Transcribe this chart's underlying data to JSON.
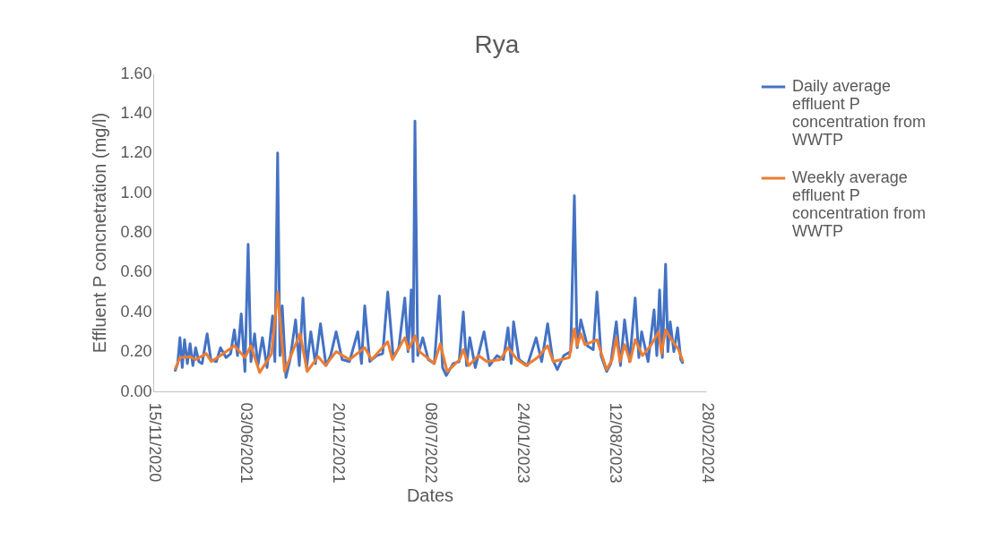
{
  "chart_data": {
    "type": "line",
    "title": "Rya",
    "xlabel": "Dates",
    "ylabel": "Effluent P concnetration (mg/l)",
    "xlim": [
      "2020-11-15",
      "2024-02-28"
    ],
    "xticks": [
      {
        "value": "2020-11-15",
        "label": "15/11/2020"
      },
      {
        "value": "2021-06-03",
        "label": "03/06/2021"
      },
      {
        "value": "2021-12-20",
        "label": "20/12/2021"
      },
      {
        "value": "2022-07-08",
        "label": "08/07/2022"
      },
      {
        "value": "2023-01-24",
        "label": "24/01/2023"
      },
      {
        "value": "2023-08-12",
        "label": "12/08/2023"
      },
      {
        "value": "2024-02-28",
        "label": "28/02/2024"
      }
    ],
    "ylim": [
      0,
      1.6
    ],
    "yticks": [
      {
        "value": 0,
        "label": "0.00"
      },
      {
        "value": 0.2,
        "label": "0.20"
      },
      {
        "value": 0.4,
        "label": "0.40"
      },
      {
        "value": 0.6,
        "label": "0.60"
      },
      {
        "value": 0.8,
        "label": "0.80"
      },
      {
        "value": 1,
        "label": "1.00"
      },
      {
        "value": 1.2,
        "label": "1.20"
      },
      {
        "value": 1.4,
        "label": "1.40"
      },
      {
        "value": 1.6,
        "label": "1.60"
      }
    ],
    "grid": false,
    "legend": "right",
    "line_style": "solid",
    "marker": "none",
    "series": [
      {
        "name": "Daily average effluent P concentration from WWTP",
        "color": "#4472c4",
        "x": [
          "2021-01-01",
          "2021-01-07",
          "2021-01-12",
          "2021-01-17",
          "2021-01-22",
          "2021-01-28",
          "2021-02-03",
          "2021-02-09",
          "2021-02-15",
          "2021-02-22",
          "2021-03-01",
          "2021-03-12",
          "2021-03-20",
          "2021-04-01",
          "2021-04-10",
          "2021-04-22",
          "2021-05-02",
          "2021-05-10",
          "2021-05-17",
          "2021-05-25",
          "2021-06-02",
          "2021-06-09",
          "2021-06-15",
          "2021-06-23",
          "2021-06-30",
          "2021-07-10",
          "2021-07-20",
          "2021-08-01",
          "2021-08-06",
          "2021-08-12",
          "2021-08-17",
          "2021-08-22",
          "2021-08-30",
          "2021-09-08",
          "2021-09-20",
          "2021-09-28",
          "2021-10-06",
          "2021-10-14",
          "2021-10-23",
          "2021-11-02",
          "2021-11-13",
          "2021-11-25",
          "2021-12-05",
          "2021-12-17",
          "2021-12-30",
          "2022-01-15",
          "2022-02-02",
          "2022-02-10",
          "2022-02-17",
          "2022-02-28",
          "2022-03-15",
          "2022-03-28",
          "2022-04-08",
          "2022-04-20",
          "2022-05-02",
          "2022-05-15",
          "2022-05-22",
          "2022-05-29",
          "2022-06-02",
          "2022-06-06",
          "2022-06-12",
          "2022-06-23",
          "2022-07-05",
          "2022-07-18",
          "2022-07-29",
          "2022-08-05",
          "2022-08-13",
          "2022-08-28",
          "2022-09-10",
          "2022-09-19",
          "2022-09-26",
          "2022-10-03",
          "2022-10-15",
          "2022-11-03",
          "2022-11-15",
          "2022-12-01",
          "2022-12-15",
          "2022-12-25",
          "2023-01-01",
          "2023-01-06",
          "2023-01-18",
          "2023-02-05",
          "2023-02-24",
          "2023-03-08",
          "2023-03-21",
          "2023-04-01",
          "2023-04-11",
          "2023-04-25",
          "2023-05-10",
          "2023-05-18",
          "2023-05-24",
          "2023-06-01",
          "2023-06-15",
          "2023-06-28",
          "2023-07-06",
          "2023-07-15",
          "2023-07-27",
          "2023-08-05",
          "2023-08-17",
          "2023-08-26",
          "2023-09-04",
          "2023-09-15",
          "2023-09-27",
          "2023-10-05",
          "2023-10-11",
          "2023-10-25",
          "2023-11-07",
          "2023-11-13",
          "2023-11-19",
          "2023-11-25",
          "2023-12-02",
          "2023-12-07",
          "2023-12-12",
          "2023-12-20",
          "2023-12-28",
          "2024-01-04",
          "2024-01-09"
        ],
        "values": [
          0.1,
          0.14,
          0.27,
          0.12,
          0.26,
          0.14,
          0.24,
          0.13,
          0.22,
          0.15,
          0.14,
          0.29,
          0.16,
          0.15,
          0.22,
          0.17,
          0.19,
          0.31,
          0.18,
          0.39,
          0.1,
          0.74,
          0.15,
          0.29,
          0.13,
          0.27,
          0.12,
          0.38,
          0.15,
          1.2,
          0.18,
          0.43,
          0.07,
          0.16,
          0.36,
          0.13,
          0.47,
          0.12,
          0.3,
          0.14,
          0.34,
          0.13,
          0.18,
          0.3,
          0.16,
          0.15,
          0.3,
          0.14,
          0.43,
          0.15,
          0.18,
          0.19,
          0.5,
          0.17,
          0.22,
          0.47,
          0.2,
          0.51,
          0.15,
          1.36,
          0.18,
          0.27,
          0.16,
          0.14,
          0.48,
          0.12,
          0.08,
          0.14,
          0.15,
          0.4,
          0.13,
          0.27,
          0.12,
          0.3,
          0.13,
          0.18,
          0.16,
          0.32,
          0.14,
          0.35,
          0.16,
          0.13,
          0.27,
          0.15,
          0.34,
          0.16,
          0.11,
          0.18,
          0.2,
          0.985,
          0.22,
          0.36,
          0.23,
          0.21,
          0.5,
          0.18,
          0.1,
          0.14,
          0.35,
          0.13,
          0.36,
          0.15,
          0.47,
          0.17,
          0.3,
          0.15,
          0.41,
          0.18,
          0.51,
          0.17,
          0.64,
          0.2,
          0.35,
          0.2,
          0.32,
          0.16,
          0.14
        ]
      },
      {
        "name": "Weekly average effluent P concentration from WWTP",
        "color": "#ed7d31",
        "x": [
          "2021-01-01",
          "2021-01-12",
          "2021-02-02",
          "2021-02-15",
          "2021-03-10",
          "2021-03-21",
          "2021-04-10",
          "2021-05-10",
          "2021-06-02",
          "2021-06-15",
          "2021-07-04",
          "2021-07-30",
          "2021-08-12",
          "2021-08-27",
          "2021-09-17",
          "2021-09-30",
          "2021-10-15",
          "2021-11-08",
          "2021-11-24",
          "2021-12-17",
          "2022-01-15",
          "2022-02-17",
          "2022-03-04",
          "2022-04-08",
          "2022-04-18",
          "2022-05-15",
          "2022-05-23",
          "2022-06-06",
          "2022-06-16",
          "2022-07-18",
          "2022-07-31",
          "2022-08-15",
          "2022-09-11",
          "2022-09-19",
          "2022-10-01",
          "2022-10-22",
          "2022-11-09",
          "2022-12-08",
          "2022-12-25",
          "2023-01-14",
          "2023-02-02",
          "2023-02-27",
          "2023-03-21",
          "2023-04-02",
          "2023-05-07",
          "2023-05-18",
          "2023-05-24",
          "2023-06-01",
          "2023-06-10",
          "2023-07-06",
          "2023-07-27",
          "2023-08-08",
          "2023-08-17",
          "2023-08-25",
          "2023-09-04",
          "2023-09-16",
          "2023-09-27",
          "2023-10-13",
          "2023-11-01",
          "2023-11-17",
          "2023-11-23",
          "2023-12-02",
          "2023-12-12",
          "2023-12-30",
          "2024-01-09"
        ],
        "values": [
          0.11,
          0.17,
          0.175,
          0.16,
          0.19,
          0.15,
          0.18,
          0.23,
          0.17,
          0.23,
          0.095,
          0.19,
          0.5,
          0.1,
          0.22,
          0.29,
          0.1,
          0.175,
          0.13,
          0.2,
          0.16,
          0.22,
          0.16,
          0.25,
          0.16,
          0.27,
          0.21,
          0.28,
          0.2,
          0.14,
          0.24,
          0.1,
          0.16,
          0.21,
          0.13,
          0.18,
          0.15,
          0.16,
          0.22,
          0.16,
          0.13,
          0.17,
          0.23,
          0.15,
          0.17,
          0.315,
          0.23,
          0.29,
          0.235,
          0.26,
          0.11,
          0.16,
          0.27,
          0.15,
          0.235,
          0.15,
          0.26,
          0.18,
          0.235,
          0.3,
          0.19,
          0.31,
          0.27,
          0.21,
          0.15
        ]
      }
    ]
  }
}
